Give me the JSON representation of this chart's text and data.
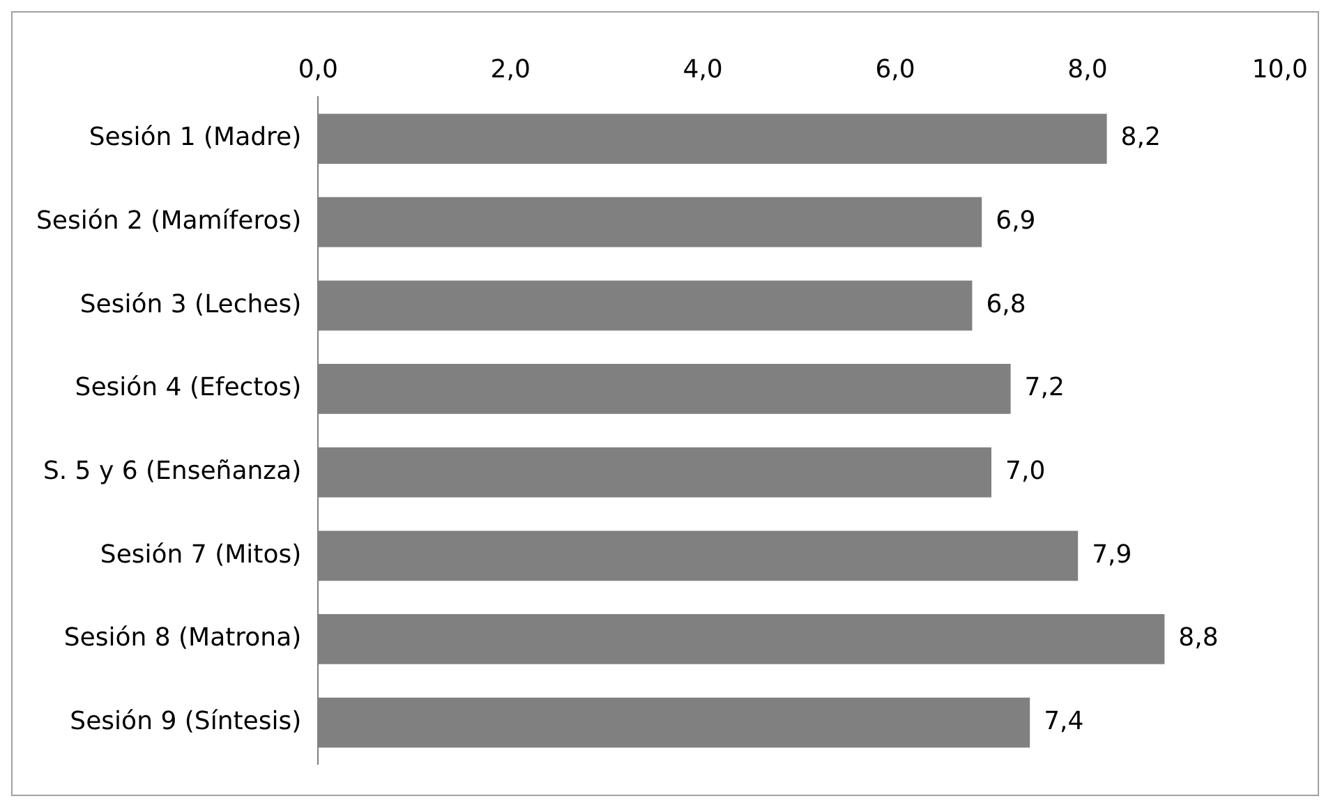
{
  "chart_data": {
    "type": "bar",
    "orientation": "horizontal",
    "categories": [
      "Sesión 1 (Madre)",
      "Sesión 2 (Mamíferos)",
      "Sesión 3 (Leches)",
      "Sesión 4 (Efectos)",
      "S. 5 y 6 (Enseñanza)",
      "Sesión 7 (Mitos)",
      "Sesión 8 (Matrona)",
      "Sesión 9 (Síntesis)"
    ],
    "values": [
      8.2,
      6.9,
      6.8,
      7.2,
      7.0,
      7.9,
      8.8,
      7.4
    ],
    "value_labels": [
      "8,2",
      "6,9",
      "6,8",
      "7,2",
      "7,0",
      "7,9",
      "8,8",
      "7,4"
    ],
    "color": "#808080",
    "xlim": [
      0,
      10
    ],
    "xticks": [
      {
        "value": 0,
        "label": "0,0"
      },
      {
        "value": 2,
        "label": "2,0"
      },
      {
        "value": 4,
        "label": "4,0"
      },
      {
        "value": 6,
        "label": "6,0"
      },
      {
        "value": 8,
        "label": "8,0"
      },
      {
        "value": 10,
        "label": "10,0"
      }
    ],
    "grid": false,
    "legend": false
  }
}
